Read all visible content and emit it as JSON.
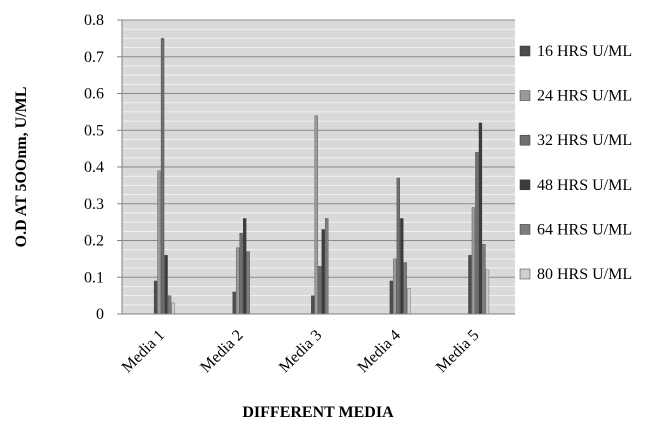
{
  "chart_data": {
    "type": "bar",
    "title": "",
    "xlabel": "DIFFERENT MEDIA",
    "ylabel": "O.D AT 5OOnm,  U/ML",
    "categories": [
      "Media 1",
      "Media 2",
      "Media 3",
      "Media 4",
      "Media 5"
    ],
    "ylim": [
      0,
      0.8
    ],
    "yticks": [
      "0",
      "0.1",
      "0.2",
      "0.3",
      "0.4",
      "0.5",
      "0.6",
      "0.7",
      "0.8"
    ],
    "grid": true,
    "legend_position": "right",
    "series": [
      {
        "name": "16  HRS U/ML",
        "color": "#4d4d4d",
        "values": [
          0.09,
          0.06,
          0.05,
          0.09,
          0.16
        ]
      },
      {
        "name": "24 HRS U/ML",
        "color": "#9a9a9a",
        "values": [
          0.39,
          0.18,
          0.54,
          0.15,
          0.29
        ]
      },
      {
        "name": "32 HRS U/ML",
        "color": "#6e6e6e",
        "values": [
          0.75,
          0.22,
          0.13,
          0.37,
          0.44
        ]
      },
      {
        "name": "48 HRS U/ML",
        "color": "#3c3c3c",
        "values": [
          0.16,
          0.26,
          0.23,
          0.26,
          0.52
        ]
      },
      {
        "name": "64 HRS U/ML",
        "color": "#7d7d7d",
        "values": [
          0.05,
          0.17,
          0.26,
          0.14,
          0.19
        ]
      },
      {
        "name": "80 HRS U/ML",
        "color": "#cfcfcf",
        "values": [
          0.03,
          0.0,
          0.0,
          0.07,
          0.12
        ]
      }
    ]
  }
}
